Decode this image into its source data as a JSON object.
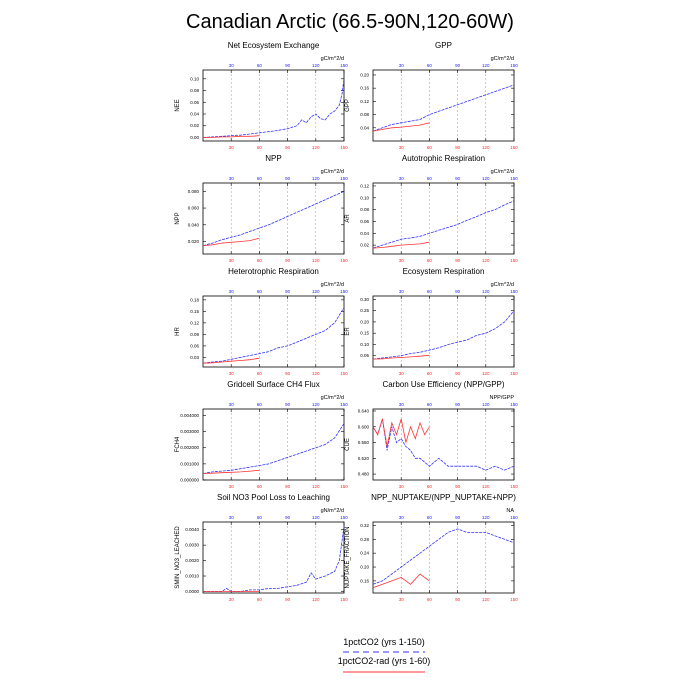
{
  "figure": {
    "title": "Canadian Arctic (66.5-90N,120-60W)",
    "legend": [
      {
        "label": "1pctCO2 (yrs 1-150)",
        "color": "#3333ff",
        "dashed": true
      },
      {
        "label": "1pctCO2-rad (yrs 1-60)",
        "color": "#ff3333",
        "dashed": false
      }
    ]
  },
  "chart_data": [
    {
      "type": "line",
      "title": "Net Ecosystem Exchange",
      "units": "gC/m^2/d",
      "ylabel": "NEE",
      "yticks": [
        "0.00",
        "0.02",
        "0.04",
        "0.06",
        "0.08",
        "0.10"
      ],
      "ylim": [
        -0.006,
        0.115
      ],
      "xlim": [
        0,
        150
      ],
      "top_xticks": [
        30,
        60,
        90,
        120,
        150
      ],
      "bottom_xticks": [
        30,
        60,
        90,
        120,
        150
      ],
      "series": [
        {
          "name": "1pctCO2 (yrs 1-150)",
          "color": "#3333ff",
          "x": [
            0,
            10,
            20,
            30,
            40,
            50,
            60,
            70,
            80,
            90,
            100,
            105,
            110,
            115,
            120,
            125,
            130,
            135,
            140,
            145,
            148,
            150
          ],
          "y": [
            0.0,
            0.001,
            0.002,
            0.003,
            0.004,
            0.006,
            0.008,
            0.01,
            0.012,
            0.015,
            0.02,
            0.03,
            0.025,
            0.035,
            0.04,
            0.032,
            0.03,
            0.04,
            0.045,
            0.055,
            0.075,
            0.1
          ]
        },
        {
          "name": "1pctCO2-rad (yrs 1-60)",
          "color": "#ff3333",
          "x": [
            0,
            10,
            20,
            30,
            40,
            50,
            60
          ],
          "y": [
            0.0,
            0.0,
            0.001,
            0.001,
            0.002,
            0.002,
            0.003
          ]
        }
      ]
    },
    {
      "type": "line",
      "title": "GPP",
      "units": "gC/m^2/d",
      "ylabel": "GPP",
      "yticks": [
        "0.04",
        "0.08",
        "0.12",
        "0.16",
        "0.20"
      ],
      "ylim": [
        0.0,
        0.215
      ],
      "xlim": [
        0,
        150
      ],
      "top_xticks": [
        30,
        60,
        90,
        120,
        150
      ],
      "bottom_xticks": [
        30,
        60,
        90,
        120,
        150
      ],
      "series": [
        {
          "name": "1pctCO2 (yrs 1-150)",
          "color": "#3333ff",
          "x": [
            0,
            10,
            20,
            30,
            40,
            50,
            60,
            70,
            80,
            90,
            100,
            110,
            120,
            130,
            140,
            150
          ],
          "y": [
            0.03,
            0.04,
            0.05,
            0.055,
            0.06,
            0.065,
            0.08,
            0.09,
            0.1,
            0.11,
            0.12,
            0.13,
            0.14,
            0.15,
            0.16,
            0.17
          ]
        },
        {
          "name": "1pctCO2-rad (yrs 1-60)",
          "color": "#ff3333",
          "x": [
            0,
            10,
            20,
            30,
            40,
            50,
            60
          ],
          "y": [
            0.03,
            0.035,
            0.04,
            0.042,
            0.045,
            0.048,
            0.055
          ]
        }
      ]
    },
    {
      "type": "line",
      "title": "NPP",
      "units": "gC/m^2/d",
      "ylabel": "NPP",
      "yticks": [
        "0.020",
        "0.040",
        "0.060",
        "0.080"
      ],
      "ylim": [
        0.005,
        0.09
      ],
      "xlim": [
        0,
        150
      ],
      "top_xticks": [
        30,
        60,
        90,
        120,
        150
      ],
      "bottom_xticks": [
        30,
        60,
        90,
        120,
        150
      ],
      "series": [
        {
          "name": "1pctCO2 (yrs 1-150)",
          "color": "#3333ff",
          "x": [
            0,
            10,
            20,
            30,
            40,
            50,
            60,
            70,
            80,
            90,
            100,
            110,
            120,
            130,
            140,
            150
          ],
          "y": [
            0.015,
            0.018,
            0.022,
            0.025,
            0.028,
            0.032,
            0.036,
            0.04,
            0.045,
            0.05,
            0.055,
            0.06,
            0.065,
            0.07,
            0.075,
            0.08
          ]
        },
        {
          "name": "1pctCO2-rad (yrs 1-60)",
          "color": "#ff3333",
          "x": [
            0,
            10,
            20,
            30,
            40,
            50,
            60
          ],
          "y": [
            0.015,
            0.016,
            0.018,
            0.019,
            0.02,
            0.021,
            0.024
          ]
        }
      ]
    },
    {
      "type": "line",
      "title": "Autotrophic Respiration",
      "units": "gC/m^2/d",
      "ylabel": "AR",
      "yticks": [
        "0.02",
        "0.04",
        "0.06",
        "0.08",
        "0.10",
        "0.12"
      ],
      "ylim": [
        0.005,
        0.125
      ],
      "xlim": [
        0,
        150
      ],
      "top_xticks": [
        30,
        60,
        90,
        120,
        150
      ],
      "bottom_xticks": [
        30,
        60,
        90,
        120,
        150
      ],
      "series": [
        {
          "name": "1pctCO2 (yrs 1-150)",
          "color": "#3333ff",
          "x": [
            0,
            10,
            20,
            30,
            40,
            50,
            60,
            70,
            80,
            90,
            100,
            110,
            120,
            130,
            140,
            150
          ],
          "y": [
            0.015,
            0.02,
            0.025,
            0.03,
            0.032,
            0.035,
            0.04,
            0.045,
            0.05,
            0.055,
            0.062,
            0.068,
            0.075,
            0.08,
            0.088,
            0.095
          ]
        },
        {
          "name": "1pctCO2-rad (yrs 1-60)",
          "color": "#ff3333",
          "x": [
            0,
            10,
            20,
            30,
            40,
            50,
            60
          ],
          "y": [
            0.015,
            0.016,
            0.018,
            0.02,
            0.021,
            0.022,
            0.025
          ]
        }
      ]
    },
    {
      "type": "line",
      "title": "Heterotrophic Respiration",
      "units": "gC/m^2/d",
      "ylabel": "HR",
      "yticks": [
        "0.03",
        "0.06",
        "0.09",
        "0.12",
        "0.15",
        "0.18"
      ],
      "ylim": [
        0.005,
        0.19
      ],
      "xlim": [
        0,
        150
      ],
      "top_xticks": [
        30,
        60,
        90,
        120,
        150
      ],
      "bottom_xticks": [
        30,
        60,
        90,
        120,
        150
      ],
      "series": [
        {
          "name": "1pctCO2 (yrs 1-150)",
          "color": "#3333ff",
          "x": [
            0,
            10,
            20,
            30,
            40,
            50,
            60,
            70,
            80,
            90,
            100,
            110,
            120,
            130,
            140,
            150
          ],
          "y": [
            0.015,
            0.018,
            0.02,
            0.025,
            0.03,
            0.035,
            0.04,
            0.045,
            0.055,
            0.06,
            0.07,
            0.08,
            0.09,
            0.1,
            0.12,
            0.16
          ]
        },
        {
          "name": "1pctCO2-rad (yrs 1-60)",
          "color": "#ff3333",
          "x": [
            0,
            10,
            20,
            30,
            40,
            50,
            60
          ],
          "y": [
            0.015,
            0.016,
            0.018,
            0.02,
            0.022,
            0.024,
            0.028
          ]
        }
      ]
    },
    {
      "type": "line",
      "title": "Ecosystem Respiration",
      "units": "gC/m^2/d",
      "ylabel": "ER",
      "yticks": [
        "0.05",
        "0.10",
        "0.15",
        "0.20",
        "0.25",
        "0.30"
      ],
      "ylim": [
        0.0,
        0.315
      ],
      "xlim": [
        0,
        150
      ],
      "top_xticks": [
        30,
        60,
        90,
        120,
        150
      ],
      "bottom_xticks": [
        30,
        60,
        90,
        120,
        150
      ],
      "series": [
        {
          "name": "1pctCO2 (yrs 1-150)",
          "color": "#3333ff",
          "x": [
            0,
            10,
            20,
            30,
            40,
            50,
            60,
            70,
            80,
            90,
            100,
            110,
            120,
            130,
            140,
            150
          ],
          "y": [
            0.035,
            0.04,
            0.045,
            0.05,
            0.06,
            0.065,
            0.075,
            0.085,
            0.1,
            0.11,
            0.12,
            0.14,
            0.15,
            0.17,
            0.2,
            0.25
          ]
        },
        {
          "name": "1pctCO2-rad (yrs 1-60)",
          "color": "#ff3333",
          "x": [
            0,
            10,
            20,
            30,
            40,
            50,
            60
          ],
          "y": [
            0.035,
            0.036,
            0.04,
            0.042,
            0.045,
            0.048,
            0.052
          ]
        }
      ]
    },
    {
      "type": "line",
      "title": "Gridcell Surface CH4 Flux",
      "units": "gC/m^2/d",
      "ylabel": "FCH4",
      "yticks": [
        "0.000000",
        "0.001000",
        "0.002000",
        "0.003000",
        "0.004000"
      ],
      "ylim": [
        0.0,
        0.0044
      ],
      "xlim": [
        0,
        150
      ],
      "top_xticks": [
        30,
        60,
        90,
        120,
        150
      ],
      "bottom_xticks": [
        30,
        60,
        90,
        120,
        150
      ],
      "series": [
        {
          "name": "1pctCO2 (yrs 1-150)",
          "color": "#3333ff",
          "x": [
            0,
            10,
            20,
            30,
            40,
            50,
            60,
            70,
            80,
            90,
            100,
            110,
            120,
            130,
            140,
            150
          ],
          "y": [
            0.0004,
            0.0005,
            0.00055,
            0.0006,
            0.0007,
            0.0008,
            0.0009,
            0.001,
            0.0012,
            0.0014,
            0.0016,
            0.0018,
            0.002,
            0.0022,
            0.0026,
            0.0035
          ]
        },
        {
          "name": "1pctCO2-rad (yrs 1-60)",
          "color": "#ff3333",
          "x": [
            0,
            10,
            20,
            30,
            40,
            50,
            60
          ],
          "y": [
            0.0004,
            0.00042,
            0.00045,
            0.00048,
            0.0005,
            0.00055,
            0.0006
          ]
        }
      ]
    },
    {
      "type": "line",
      "title": "Carbon Use Efficiency (NPP/GPP)",
      "units": "NPP/GPP",
      "ylabel": "CUE",
      "yticks": [
        "0.480",
        "0.520",
        "0.560",
        "0.600",
        "0.640"
      ],
      "ylim": [
        0.465,
        0.645
      ],
      "xlim": [
        0,
        150
      ],
      "top_xticks": [
        30,
        60,
        90,
        120,
        150
      ],
      "bottom_xticks": [
        30,
        60,
        90,
        120,
        150
      ],
      "series": [
        {
          "name": "1pctCO2 (yrs 1-150)",
          "color": "#3333ff",
          "x": [
            0,
            5,
            10,
            15,
            20,
            25,
            30,
            35,
            40,
            45,
            50,
            60,
            70,
            80,
            90,
            100,
            110,
            120,
            130,
            140,
            150
          ],
          "y": [
            0.6,
            0.58,
            0.62,
            0.54,
            0.6,
            0.56,
            0.57,
            0.55,
            0.54,
            0.52,
            0.52,
            0.5,
            0.52,
            0.5,
            0.5,
            0.5,
            0.5,
            0.49,
            0.5,
            0.49,
            0.5
          ]
        },
        {
          "name": "1pctCO2-rad (yrs 1-60)",
          "color": "#ff3333",
          "x": [
            0,
            5,
            10,
            15,
            20,
            25,
            30,
            35,
            40,
            45,
            50,
            55,
            60
          ],
          "y": [
            0.6,
            0.58,
            0.62,
            0.55,
            0.61,
            0.58,
            0.62,
            0.56,
            0.6,
            0.57,
            0.61,
            0.58,
            0.6
          ]
        }
      ]
    },
    {
      "type": "line",
      "title": "Soil NO3 Pool Loss to Leaching",
      "units": "gN/m^2/d",
      "ylabel": "SMIN_NO3_LEACHED",
      "yticks": [
        "0.0000",
        "0.0010",
        "0.0020",
        "0.0030",
        "0.0040"
      ],
      "ylim": [
        -0.0001,
        0.0045
      ],
      "xlim": [
        0,
        150
      ],
      "top_xticks": [
        30,
        60,
        90,
        120,
        150
      ],
      "bottom_xticks": [
        30,
        60,
        90,
        120,
        150
      ],
      "series": [
        {
          "name": "1pctCO2 (yrs 1-150)",
          "color": "#3333ff",
          "x": [
            0,
            10,
            20,
            25,
            30,
            40,
            50,
            60,
            70,
            80,
            90,
            100,
            110,
            115,
            120,
            130,
            140,
            145,
            150
          ],
          "y": [
            0.0,
            0.0,
            0.0,
            0.0002,
            0.0,
            0.0,
            0.0001,
            0.0001,
            0.0002,
            0.0002,
            0.0003,
            0.0004,
            0.0006,
            0.0012,
            0.0008,
            0.001,
            0.0013,
            0.002,
            0.0042
          ]
        },
        {
          "name": "1pctCO2-rad (yrs 1-60)",
          "color": "#ff3333",
          "x": [
            0,
            10,
            20,
            30,
            40,
            50,
            60
          ],
          "y": [
            0.0,
            0.0,
            0.0,
            0.0,
            0.0,
            0.0,
            0.0
          ]
        }
      ]
    },
    {
      "type": "line",
      "title": "NPP_NUPTAKE/(NPP_NUPTAKE+NPP)",
      "units": "NA",
      "ylabel": "NUPTAKE_FRACTION",
      "yticks": [
        "0.16",
        "0.20",
        "0.24",
        "0.28",
        "0.32"
      ],
      "ylim": [
        0.125,
        0.33
      ],
      "xlim": [
        0,
        150
      ],
      "top_xticks": [
        30,
        60,
        90,
        120,
        150
      ],
      "bottom_xticks": [
        30,
        60,
        90,
        120,
        150
      ],
      "series": [
        {
          "name": "1pctCO2 (yrs 1-150)",
          "color": "#3333ff",
          "x": [
            0,
            10,
            20,
            30,
            40,
            50,
            60,
            70,
            80,
            90,
            100,
            110,
            120,
            130,
            140,
            150
          ],
          "y": [
            0.15,
            0.16,
            0.18,
            0.2,
            0.22,
            0.24,
            0.26,
            0.28,
            0.3,
            0.31,
            0.3,
            0.3,
            0.3,
            0.29,
            0.28,
            0.27
          ]
        },
        {
          "name": "1pctCO2-rad (yrs 1-60)",
          "color": "#ff3333",
          "x": [
            0,
            10,
            20,
            30,
            40,
            50,
            60
          ],
          "y": [
            0.14,
            0.15,
            0.16,
            0.17,
            0.15,
            0.18,
            0.16
          ]
        }
      ]
    }
  ]
}
